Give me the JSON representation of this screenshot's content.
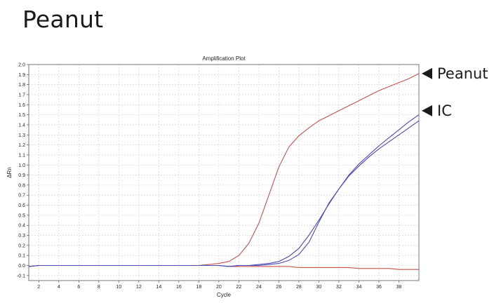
{
  "page": {
    "heading": "Peanut"
  },
  "chart_data": {
    "type": "line",
    "title": "Amplification Plot",
    "xlabel": "Cycle",
    "ylabel": "ΔRn",
    "xlim": [
      1,
      40
    ],
    "ylim": [
      -0.15,
      2.0
    ],
    "x_ticks": [
      2,
      4,
      6,
      8,
      10,
      12,
      14,
      16,
      18,
      20,
      22,
      24,
      26,
      28,
      30,
      32,
      34,
      36,
      38
    ],
    "y_ticks": [
      -0.1,
      0.0,
      0.1,
      0.2,
      0.3,
      0.4,
      0.5,
      0.6,
      0.7,
      0.8,
      0.9,
      1.0,
      1.1,
      1.2,
      1.3,
      1.4,
      1.5,
      1.6,
      1.7,
      1.8,
      1.9,
      2.0
    ],
    "grid": true,
    "annotations": [
      {
        "text": "Peanut",
        "y": 1.91
      },
      {
        "text": "IC",
        "y": 1.54
      }
    ],
    "series": [
      {
        "color": "#c8524a",
        "x": [
          1,
          2,
          3,
          4,
          5,
          6,
          7,
          8,
          9,
          10,
          11,
          12,
          13,
          14,
          15,
          16,
          17,
          18,
          19,
          20,
          21,
          22,
          23,
          24,
          25,
          26,
          27,
          28,
          29,
          30,
          31,
          32,
          33,
          34,
          35,
          36,
          37,
          38,
          39,
          40
        ],
        "y": [
          -0.01,
          0.0,
          0.0,
          0.0,
          0.0,
          0.0,
          0.0,
          0.0,
          0.0,
          0.0,
          0.0,
          0.0,
          0.0,
          0.0,
          0.0,
          0.0,
          0.0,
          0.0,
          0.01,
          0.02,
          0.04,
          0.1,
          0.22,
          0.42,
          0.7,
          0.98,
          1.18,
          1.29,
          1.37,
          1.44,
          1.49,
          1.54,
          1.59,
          1.64,
          1.69,
          1.74,
          1.78,
          1.82,
          1.86,
          1.91
        ]
      },
      {
        "color": "#c8524a",
        "x": [
          1,
          2,
          3,
          4,
          5,
          6,
          7,
          8,
          9,
          10,
          11,
          12,
          13,
          14,
          15,
          16,
          17,
          18,
          19,
          20,
          21,
          22,
          23,
          24,
          25,
          26,
          27,
          28,
          29,
          30,
          31,
          32,
          33,
          34,
          35,
          36,
          37,
          38,
          39,
          40
        ],
        "y": [
          -0.01,
          0.0,
          0.0,
          0.0,
          0.0,
          0.0,
          0.0,
          0.0,
          0.0,
          0.0,
          0.0,
          0.0,
          0.0,
          0.0,
          0.0,
          0.0,
          0.0,
          0.0,
          0.0,
          0.0,
          -0.01,
          -0.01,
          -0.01,
          -0.01,
          -0.01,
          -0.01,
          -0.01,
          -0.02,
          -0.02,
          -0.02,
          -0.02,
          -0.02,
          -0.02,
          -0.03,
          -0.03,
          -0.03,
          -0.03,
          -0.04,
          -0.04,
          -0.04
        ]
      },
      {
        "color": "#4a4ab8",
        "x": [
          1,
          2,
          3,
          4,
          5,
          6,
          7,
          8,
          9,
          10,
          11,
          12,
          13,
          14,
          15,
          16,
          17,
          18,
          19,
          20,
          21,
          22,
          23,
          24,
          25,
          26,
          27,
          28,
          29,
          30,
          31,
          32,
          33,
          34,
          35,
          36,
          37,
          38,
          39,
          40
        ],
        "y": [
          -0.01,
          0.0,
          0.0,
          0.0,
          0.0,
          0.0,
          0.0,
          0.0,
          0.0,
          0.0,
          0.0,
          0.0,
          0.0,
          0.0,
          0.0,
          0.0,
          0.0,
          0.0,
          0.0,
          0.0,
          -0.01,
          0.0,
          0.0,
          0.01,
          0.02,
          0.04,
          0.09,
          0.17,
          0.3,
          0.45,
          0.61,
          0.76,
          0.9,
          1.01,
          1.1,
          1.19,
          1.27,
          1.35,
          1.43,
          1.5
        ]
      },
      {
        "color": "#4a4ab8",
        "x": [
          1,
          2,
          3,
          4,
          5,
          6,
          7,
          8,
          9,
          10,
          11,
          12,
          13,
          14,
          15,
          16,
          17,
          18,
          19,
          20,
          21,
          22,
          23,
          24,
          25,
          26,
          27,
          28,
          29,
          30,
          31,
          32,
          33,
          34,
          35,
          36,
          37,
          38,
          39,
          40
        ],
        "y": [
          -0.01,
          0.0,
          0.0,
          0.0,
          0.0,
          0.0,
          0.0,
          0.0,
          0.0,
          0.0,
          0.0,
          0.0,
          0.0,
          0.0,
          0.0,
          0.0,
          0.0,
          0.0,
          0.0,
          0.0,
          -0.01,
          0.0,
          0.0,
          0.0,
          0.01,
          0.02,
          0.05,
          0.11,
          0.23,
          0.43,
          0.62,
          0.76,
          0.89,
          0.99,
          1.08,
          1.16,
          1.23,
          1.3,
          1.37,
          1.44
        ]
      }
    ]
  }
}
